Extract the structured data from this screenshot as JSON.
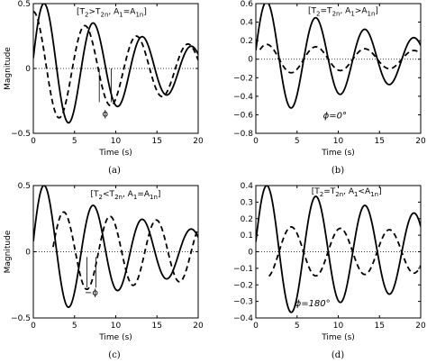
{
  "chart_data": [
    {
      "type": "line",
      "caption": "(a)",
      "xlabel": "Time (s)",
      "ylabel": "Magnitude",
      "xlim": [
        0,
        20
      ],
      "ylim": [
        -0.5,
        0.5
      ],
      "xticks": [
        0,
        5,
        10,
        15,
        20
      ],
      "yticks": [
        -0.5,
        0,
        0.5
      ],
      "ytick_labels": [
        "−0.5",
        "0",
        "0.5"
      ],
      "grid": false,
      "zero_line": "dotted",
      "annotation": {
        "parts": [
          "[T",
          "2",
          ">T",
          "2n",
          ",  A",
          "1",
          "=A",
          "1n",
          "]"
        ],
        "x": 9.5,
        "y": 0.42
      },
      "phase_marker": {
        "label": "ϕ",
        "x1": 8.0,
        "x2": 9.45,
        "y_top": 0.0,
        "y_bottom": -0.26,
        "label_y": -0.37
      },
      "series": [
        {
          "style": "solid",
          "amplitude": 0.5,
          "decay": 0.06,
          "frequency": 0.168,
          "peak_time": 1.35
        },
        {
          "style": "dashed",
          "amplitude": 0.33,
          "decay": 0.045,
          "frequency": 0.16,
          "peak_time": 6.3,
          "start": 0.0
        }
      ]
    },
    {
      "type": "line",
      "caption": "(b)",
      "xlabel": "Time (s)",
      "ylabel": "",
      "xlim": [
        0,
        20
      ],
      "ylim": [
        -0.8,
        0.6
      ],
      "xticks": [
        0,
        5,
        10,
        15,
        20
      ],
      "yticks": [
        -0.8,
        -0.6,
        -0.4,
        -0.2,
        0,
        0.2,
        0.4,
        0.6
      ],
      "ytick_labels": [
        "−0.8",
        "−0.6",
        "−0.4",
        "−0.2",
        "0",
        "0.2",
        "0.4",
        "0.6"
      ],
      "grid": false,
      "zero_line": "dotted",
      "annotation": {
        "parts": [
          "[T",
          "2",
          "=T",
          "2n",
          ",  A",
          "1",
          ">A",
          "1n",
          "]"
        ],
        "x": 10.6,
        "y": 0.5
      },
      "phase_label": {
        "text": "ϕ=0°",
        "x": 9.6,
        "y": -0.64
      },
      "series": [
        {
          "style": "solid",
          "amplitude": 0.62,
          "decay": 0.055,
          "frequency": 0.168,
          "peak_time": 1.35
        },
        {
          "style": "dashed",
          "amplitude": 0.16,
          "decay": 0.03,
          "frequency": 0.168,
          "peak_time": 1.35,
          "start": 0.5
        }
      ]
    },
    {
      "type": "line",
      "caption": "(c)",
      "xlabel": "Time (s)",
      "ylabel": "Magnitude",
      "xlim": [
        0,
        20
      ],
      "ylim": [
        -0.5,
        0.5
      ],
      "xticks": [
        0,
        5,
        10,
        15,
        20
      ],
      "yticks": [
        -0.5,
        0,
        0.5
      ],
      "ytick_labels": [
        "−0.5",
        "0",
        "0.5"
      ],
      "grid": false,
      "zero_line": "dotted",
      "annotation": {
        "parts": [
          "[T",
          "2",
          "<T",
          "2n",
          ",  A",
          "1",
          "=A",
          "1n",
          "]"
        ],
        "x": 11.2,
        "y": 0.42
      },
      "phase_marker": {
        "label": "−ϕ",
        "x1": 6.5,
        "x2": 7.6,
        "y_top": -0.04,
        "y_bottom": -0.27,
        "label_y": -0.33
      },
      "series": [
        {
          "style": "solid",
          "amplitude": 0.5,
          "decay": 0.06,
          "frequency": 0.168,
          "peak_time": 1.35
        },
        {
          "style": "dashed",
          "amplitude": 0.3,
          "decay": 0.02,
          "frequency": 0.178,
          "peak_time": 3.7,
          "start": 2.4
        }
      ]
    },
    {
      "type": "line",
      "caption": "(d)",
      "xlabel": "Time (s)",
      "ylabel": "",
      "xlim": [
        0,
        20
      ],
      "ylim": [
        -0.4,
        0.4
      ],
      "xticks": [
        0,
        5,
        10,
        15,
        20
      ],
      "yticks": [
        -0.4,
        -0.3,
        -0.2,
        -0.1,
        0,
        0.1,
        0.2,
        0.3,
        0.4
      ],
      "ytick_labels": [
        "−0.4",
        "−0.3",
        "−0.2",
        "−0.1",
        "0",
        "0.1",
        "0.2",
        "0.3",
        "0.4"
      ],
      "grid": false,
      "zero_line": "dotted",
      "annotation": {
        "parts": [
          "[T",
          "2",
          "=T",
          "2n",
          ",  A",
          "1",
          "<A",
          "1n",
          "]"
        ],
        "x": 11.0,
        "y": 0.35
      },
      "phase_label": {
        "text": "ϕ=180°",
        "x": 6.9,
        "y": -0.33
      },
      "series": [
        {
          "style": "solid",
          "amplitude": 0.4,
          "decay": 0.03,
          "frequency": 0.168,
          "peak_time": 1.35
        },
        {
          "style": "dashed",
          "amplitude": 0.15,
          "decay": 0.01,
          "frequency": 0.168,
          "peak_time": 4.3,
          "start": 1.6
        }
      ]
    }
  ]
}
